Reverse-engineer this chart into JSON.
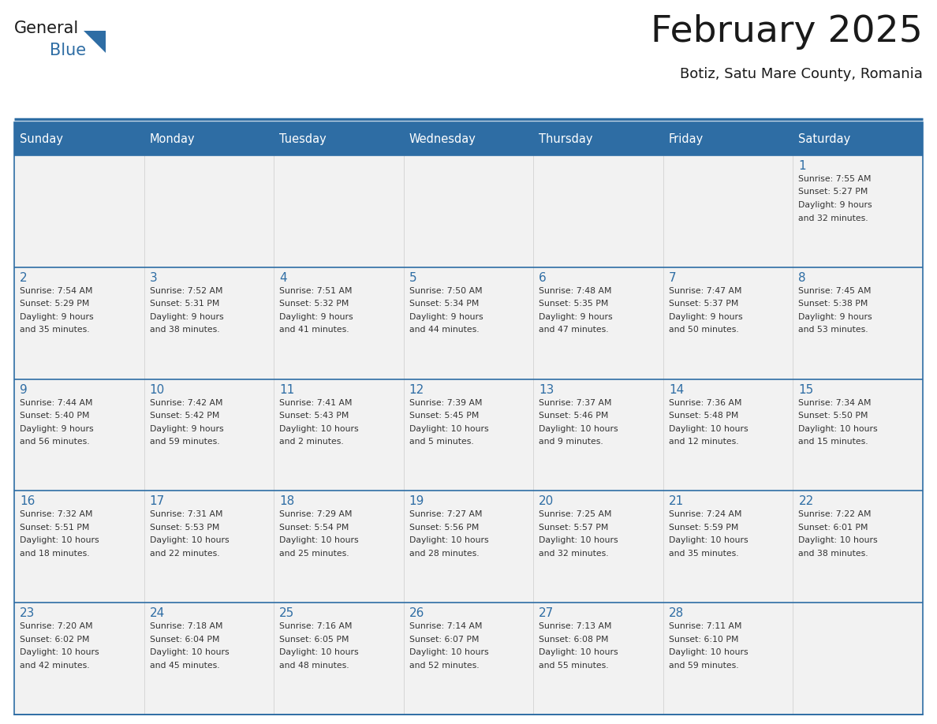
{
  "title": "February 2025",
  "subtitle": "Botiz, Satu Mare County, Romania",
  "days_of_week": [
    "Sunday",
    "Monday",
    "Tuesday",
    "Wednesday",
    "Thursday",
    "Friday",
    "Saturday"
  ],
  "header_bg": "#2E6DA4",
  "header_text_color": "#FFFFFF",
  "cell_bg": "#F2F2F2",
  "row_border_color": "#2E6DA4",
  "outer_border_color": "#2E6DA4",
  "day_number_color": "#2E6DA4",
  "text_color": "#333333",
  "logo_general_color": "#1a1a1a",
  "logo_blue_color": "#2E6DA4",
  "calendar": [
    [
      {
        "day": null,
        "info": ""
      },
      {
        "day": null,
        "info": ""
      },
      {
        "day": null,
        "info": ""
      },
      {
        "day": null,
        "info": ""
      },
      {
        "day": null,
        "info": ""
      },
      {
        "day": null,
        "info": ""
      },
      {
        "day": 1,
        "info": "Sunrise: 7:55 AM\nSunset: 5:27 PM\nDaylight: 9 hours\nand 32 minutes."
      }
    ],
    [
      {
        "day": 2,
        "info": "Sunrise: 7:54 AM\nSunset: 5:29 PM\nDaylight: 9 hours\nand 35 minutes."
      },
      {
        "day": 3,
        "info": "Sunrise: 7:52 AM\nSunset: 5:31 PM\nDaylight: 9 hours\nand 38 minutes."
      },
      {
        "day": 4,
        "info": "Sunrise: 7:51 AM\nSunset: 5:32 PM\nDaylight: 9 hours\nand 41 minutes."
      },
      {
        "day": 5,
        "info": "Sunrise: 7:50 AM\nSunset: 5:34 PM\nDaylight: 9 hours\nand 44 minutes."
      },
      {
        "day": 6,
        "info": "Sunrise: 7:48 AM\nSunset: 5:35 PM\nDaylight: 9 hours\nand 47 minutes."
      },
      {
        "day": 7,
        "info": "Sunrise: 7:47 AM\nSunset: 5:37 PM\nDaylight: 9 hours\nand 50 minutes."
      },
      {
        "day": 8,
        "info": "Sunrise: 7:45 AM\nSunset: 5:38 PM\nDaylight: 9 hours\nand 53 minutes."
      }
    ],
    [
      {
        "day": 9,
        "info": "Sunrise: 7:44 AM\nSunset: 5:40 PM\nDaylight: 9 hours\nand 56 minutes."
      },
      {
        "day": 10,
        "info": "Sunrise: 7:42 AM\nSunset: 5:42 PM\nDaylight: 9 hours\nand 59 minutes."
      },
      {
        "day": 11,
        "info": "Sunrise: 7:41 AM\nSunset: 5:43 PM\nDaylight: 10 hours\nand 2 minutes."
      },
      {
        "day": 12,
        "info": "Sunrise: 7:39 AM\nSunset: 5:45 PM\nDaylight: 10 hours\nand 5 minutes."
      },
      {
        "day": 13,
        "info": "Sunrise: 7:37 AM\nSunset: 5:46 PM\nDaylight: 10 hours\nand 9 minutes."
      },
      {
        "day": 14,
        "info": "Sunrise: 7:36 AM\nSunset: 5:48 PM\nDaylight: 10 hours\nand 12 minutes."
      },
      {
        "day": 15,
        "info": "Sunrise: 7:34 AM\nSunset: 5:50 PM\nDaylight: 10 hours\nand 15 minutes."
      }
    ],
    [
      {
        "day": 16,
        "info": "Sunrise: 7:32 AM\nSunset: 5:51 PM\nDaylight: 10 hours\nand 18 minutes."
      },
      {
        "day": 17,
        "info": "Sunrise: 7:31 AM\nSunset: 5:53 PM\nDaylight: 10 hours\nand 22 minutes."
      },
      {
        "day": 18,
        "info": "Sunrise: 7:29 AM\nSunset: 5:54 PM\nDaylight: 10 hours\nand 25 minutes."
      },
      {
        "day": 19,
        "info": "Sunrise: 7:27 AM\nSunset: 5:56 PM\nDaylight: 10 hours\nand 28 minutes."
      },
      {
        "day": 20,
        "info": "Sunrise: 7:25 AM\nSunset: 5:57 PM\nDaylight: 10 hours\nand 32 minutes."
      },
      {
        "day": 21,
        "info": "Sunrise: 7:24 AM\nSunset: 5:59 PM\nDaylight: 10 hours\nand 35 minutes."
      },
      {
        "day": 22,
        "info": "Sunrise: 7:22 AM\nSunset: 6:01 PM\nDaylight: 10 hours\nand 38 minutes."
      }
    ],
    [
      {
        "day": 23,
        "info": "Sunrise: 7:20 AM\nSunset: 6:02 PM\nDaylight: 10 hours\nand 42 minutes."
      },
      {
        "day": 24,
        "info": "Sunrise: 7:18 AM\nSunset: 6:04 PM\nDaylight: 10 hours\nand 45 minutes."
      },
      {
        "day": 25,
        "info": "Sunrise: 7:16 AM\nSunset: 6:05 PM\nDaylight: 10 hours\nand 48 minutes."
      },
      {
        "day": 26,
        "info": "Sunrise: 7:14 AM\nSunset: 6:07 PM\nDaylight: 10 hours\nand 52 minutes."
      },
      {
        "day": 27,
        "info": "Sunrise: 7:13 AM\nSunset: 6:08 PM\nDaylight: 10 hours\nand 55 minutes."
      },
      {
        "day": 28,
        "info": "Sunrise: 7:11 AM\nSunset: 6:10 PM\nDaylight: 10 hours\nand 59 minutes."
      },
      {
        "day": null,
        "info": ""
      }
    ]
  ],
  "fig_width": 11.88,
  "fig_height": 9.18,
  "dpi": 100
}
